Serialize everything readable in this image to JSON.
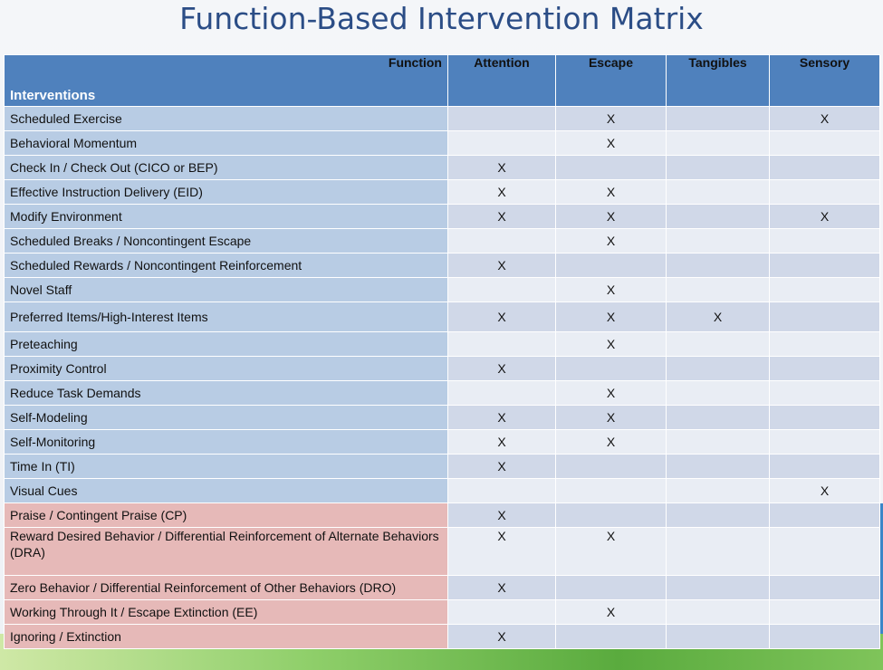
{
  "title": "Function-Based Intervention Matrix",
  "header": {
    "function_label": "Function",
    "interventions_label": "Interventions",
    "columns": [
      "Attention",
      "Escape",
      "Tangibles",
      "Sensory"
    ]
  },
  "mark": "X",
  "rows": [
    {
      "label": "Scheduled Exercise",
      "category": "blue",
      "marks": [
        false,
        true,
        false,
        true
      ]
    },
    {
      "label": "Behavioral Momentum",
      "category": "blue",
      "marks": [
        false,
        true,
        false,
        false
      ]
    },
    {
      "label": "Check In / Check Out (CICO or BEP)",
      "category": "blue",
      "marks": [
        true,
        false,
        false,
        false
      ]
    },
    {
      "label": "Effective Instruction Delivery (EID)",
      "category": "blue",
      "marks": [
        true,
        true,
        false,
        false
      ]
    },
    {
      "label": "Modify Environment",
      "category": "blue",
      "marks": [
        true,
        true,
        false,
        true
      ]
    },
    {
      "label": "Scheduled Breaks / Noncontingent Escape",
      "category": "blue",
      "marks": [
        false,
        true,
        false,
        false
      ]
    },
    {
      "label": "Scheduled Rewards / Noncontingent Reinforcement",
      "category": "blue",
      "marks": [
        true,
        false,
        false,
        false
      ]
    },
    {
      "label": "Novel Staff",
      "category": "blue",
      "marks": [
        false,
        true,
        false,
        false
      ]
    },
    {
      "label": "Preferred Items/High-Interest Items",
      "category": "blue",
      "marks": [
        true,
        true,
        true,
        false
      ]
    },
    {
      "label": "Preteaching",
      "category": "blue",
      "marks": [
        false,
        true,
        false,
        false
      ]
    },
    {
      "label": "Proximity Control",
      "category": "blue",
      "marks": [
        true,
        false,
        false,
        false
      ]
    },
    {
      "label": "Reduce Task Demands",
      "category": "blue",
      "marks": [
        false,
        true,
        false,
        false
      ]
    },
    {
      "label": "Self-Modeling",
      "category": "blue",
      "marks": [
        true,
        true,
        false,
        false
      ]
    },
    {
      "label": "Self-Monitoring",
      "category": "blue",
      "marks": [
        true,
        true,
        false,
        false
      ]
    },
    {
      "label": "Time In (TI)",
      "category": "blue",
      "marks": [
        true,
        false,
        false,
        false
      ]
    },
    {
      "label": "Visual Cues",
      "category": "blue",
      "marks": [
        false,
        false,
        false,
        true
      ]
    },
    {
      "label": "Praise / Contingent Praise (CP)",
      "category": "red",
      "marks": [
        true,
        false,
        false,
        false
      ]
    },
    {
      "label": "Reward Desired Behavior / Differential Reinforcement of Alternate Behaviors (DRA)",
      "category": "red",
      "marks": [
        true,
        true,
        false,
        false
      ]
    },
    {
      "label": "Zero Behavior / Differential Reinforcement of Other Behaviors (DRO)",
      "category": "red",
      "marks": [
        true,
        false,
        false,
        false
      ]
    },
    {
      "label": "Working Through It / Escape Extinction (EE)",
      "category": "red",
      "marks": [
        false,
        true,
        false,
        false
      ]
    },
    {
      "label": "Ignoring / Extinction",
      "category": "red",
      "marks": [
        true,
        false,
        false,
        false
      ]
    }
  ]
}
